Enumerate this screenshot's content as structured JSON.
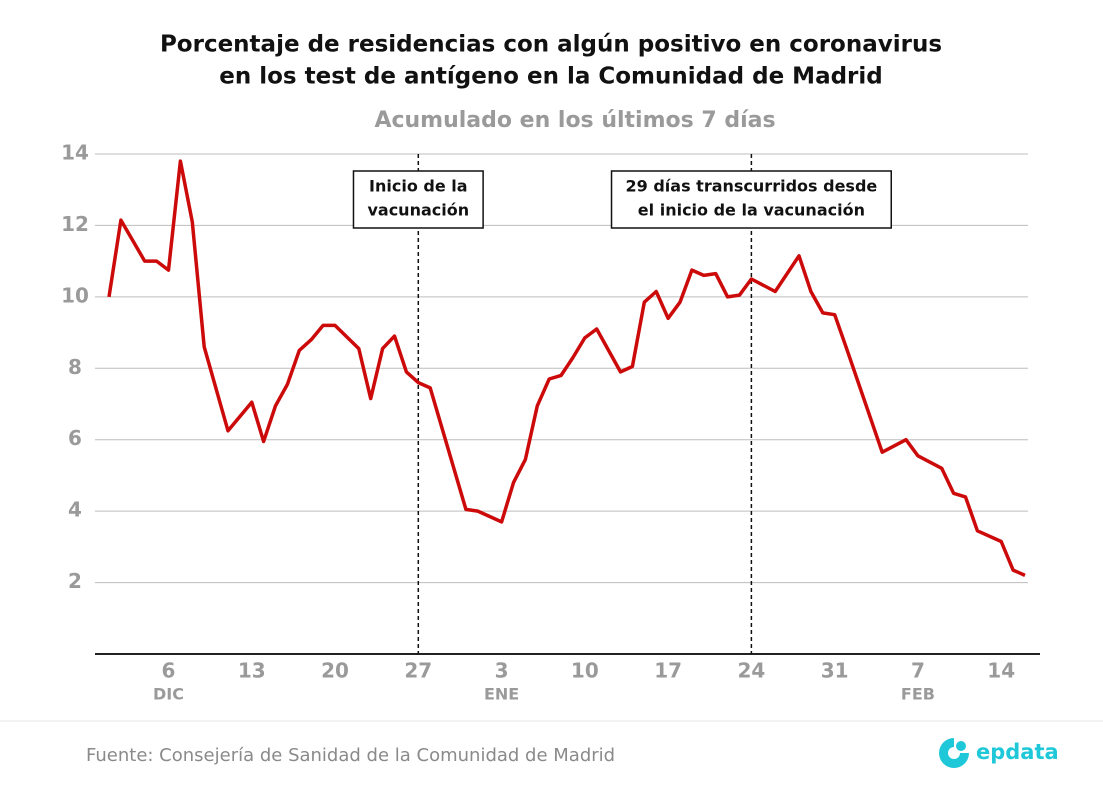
{
  "chart_data": {
    "type": "line",
    "title": [
      "Porcentaje de residencias con algún positivo en coronavirus",
      "en los test de antígeno en la Comunidad de Madrid"
    ],
    "subtitle": "Acumulado en los últimos 7 días",
    "x": [
      1,
      2,
      4,
      5,
      6,
      7,
      8,
      9,
      11,
      13,
      14,
      15,
      16,
      17,
      18,
      19,
      20,
      22,
      23,
      24,
      25,
      26,
      27,
      28,
      31,
      32,
      34,
      35,
      36,
      37,
      38,
      39,
      40,
      41,
      42,
      44,
      45,
      46,
      47,
      48,
      49,
      50,
      51,
      52,
      53,
      54,
      55,
      57,
      59,
      60,
      61,
      62,
      63,
      66,
      68,
      69,
      71,
      72,
      73,
      74,
      76,
      77,
      78
    ],
    "series": [
      {
        "name": "Porcentaje",
        "color": "#cc0a0a",
        "values": [
          10.0,
          12.15,
          11.0,
          11.0,
          10.75,
          13.8,
          12.1,
          8.6,
          6.25,
          7.05,
          5.95,
          6.95,
          7.55,
          8.5,
          8.8,
          9.2,
          9.2,
          8.55,
          7.15,
          8.55,
          8.9,
          7.9,
          7.6,
          7.45,
          4.05,
          4.0,
          3.7,
          4.8,
          5.45,
          6.95,
          7.7,
          7.8,
          8.3,
          8.85,
          9.1,
          7.9,
          8.05,
          9.85,
          10.15,
          9.4,
          9.85,
          10.75,
          10.6,
          10.65,
          10.0,
          10.05,
          10.5,
          10.15,
          11.15,
          10.15,
          9.55,
          9.5,
          8.55,
          5.65,
          6.0,
          5.55,
          5.2,
          4.5,
          4.4,
          3.45,
          3.15,
          2.35,
          2.2
        ]
      }
    ],
    "xlim": [
      1,
      78
    ],
    "xticks": [
      {
        "value": 6,
        "label": "6"
      },
      {
        "value": 13,
        "label": "13"
      },
      {
        "value": 20,
        "label": "20"
      },
      {
        "value": 27,
        "label": "27"
      },
      {
        "value": 34,
        "label": "3"
      },
      {
        "value": 41,
        "label": "10"
      },
      {
        "value": 48,
        "label": "17"
      },
      {
        "value": 55,
        "label": "24"
      },
      {
        "value": 62,
        "label": "31"
      },
      {
        "value": 69,
        "label": "7"
      },
      {
        "value": 76,
        "label": "14"
      }
    ],
    "month_labels": [
      {
        "value": 6,
        "label": "DIC"
      },
      {
        "value": 34,
        "label": "ENE"
      },
      {
        "value": 69,
        "label": "FEB"
      }
    ],
    "ylim": [
      0,
      14
    ],
    "yticks": [
      2,
      4,
      6,
      8,
      10,
      12,
      14
    ],
    "grid": true,
    "annotations": [
      {
        "x": 27,
        "text": [
          "Inicio de la",
          "vacunación"
        ]
      },
      {
        "x": 55,
        "text": [
          "29 días transcurridos desde",
          "el inicio de la vacunación"
        ]
      }
    ]
  },
  "footer": {
    "source": "Fuente: Consejería de Sanidad de la Comunidad de Madrid",
    "logo": "epdata"
  }
}
